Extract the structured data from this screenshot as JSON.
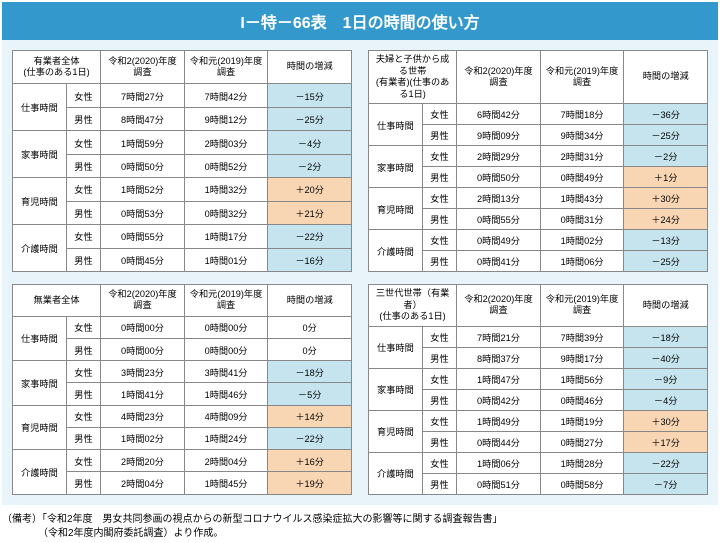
{
  "title": "I－特－66表　1日の時間の使い方",
  "headers": {
    "col_2020": "令和2(2020)年度\n調査",
    "col_2019": "令和元(2019)年度\n調査",
    "col_diff": "時間の増減",
    "female": "女性",
    "male": "男性"
  },
  "categories": [
    "仕事時間",
    "家事時間",
    "育児時間",
    "介護時間"
  ],
  "colors": {
    "neg": "#c6e4ee",
    "pos": "#f8d6b4",
    "zero": "#ffffff"
  },
  "tables": [
    {
      "label": "有業者全体\n(仕事のある1日)",
      "rows": [
        {
          "cat": "仕事時間",
          "g": "女性",
          "v2020": "7時間27分",
          "v2019": "7時間42分",
          "diff": "－15分",
          "d": -15
        },
        {
          "cat": "仕事時間",
          "g": "男性",
          "v2020": "8時間47分",
          "v2019": "9時間12分",
          "diff": "－25分",
          "d": -25
        },
        {
          "cat": "家事時間",
          "g": "女性",
          "v2020": "1時間59分",
          "v2019": "2時間03分",
          "diff": "－4分",
          "d": -4
        },
        {
          "cat": "家事時間",
          "g": "男性",
          "v2020": "0時間50分",
          "v2019": "0時間52分",
          "diff": "－2分",
          "d": -2
        },
        {
          "cat": "育児時間",
          "g": "女性",
          "v2020": "1時間52分",
          "v2019": "1時間32分",
          "diff": "＋20分",
          "d": 20
        },
        {
          "cat": "育児時間",
          "g": "男性",
          "v2020": "0時間53分",
          "v2019": "0時間32分",
          "diff": "＋21分",
          "d": 21
        },
        {
          "cat": "介護時間",
          "g": "女性",
          "v2020": "0時間55分",
          "v2019": "1時間17分",
          "diff": "－22分",
          "d": -22
        },
        {
          "cat": "介護時間",
          "g": "男性",
          "v2020": "0時間45分",
          "v2019": "1時間01分",
          "diff": "－16分",
          "d": -16
        }
      ]
    },
    {
      "label": "夫婦と子供から成る世帯\n(有業者)(仕事のある1日)",
      "rows": [
        {
          "cat": "仕事時間",
          "g": "女性",
          "v2020": "6時間42分",
          "v2019": "7時間18分",
          "diff": "－36分",
          "d": -36
        },
        {
          "cat": "仕事時間",
          "g": "男性",
          "v2020": "9時間09分",
          "v2019": "9時間34分",
          "diff": "－25分",
          "d": -25
        },
        {
          "cat": "家事時間",
          "g": "女性",
          "v2020": "2時間29分",
          "v2019": "2時間31分",
          "diff": "－2分",
          "d": -2
        },
        {
          "cat": "家事時間",
          "g": "男性",
          "v2020": "0時間50分",
          "v2019": "0時間49分",
          "diff": "＋1分",
          "d": 1
        },
        {
          "cat": "育児時間",
          "g": "女性",
          "v2020": "2時間13分",
          "v2019": "1時間43分",
          "diff": "＋30分",
          "d": 30
        },
        {
          "cat": "育児時間",
          "g": "男性",
          "v2020": "0時間55分",
          "v2019": "0時間31分",
          "diff": "＋24分",
          "d": 24
        },
        {
          "cat": "介護時間",
          "g": "女性",
          "v2020": "0時間49分",
          "v2019": "1時間02分",
          "diff": "－13分",
          "d": -13
        },
        {
          "cat": "介護時間",
          "g": "男性",
          "v2020": "0時間41分",
          "v2019": "1時間06分",
          "diff": "－25分",
          "d": -25
        }
      ]
    },
    {
      "label": "無業者全体",
      "rows": [
        {
          "cat": "仕事時間",
          "g": "女性",
          "v2020": "0時間00分",
          "v2019": "0時間00分",
          "diff": "0分",
          "d": 0
        },
        {
          "cat": "仕事時間",
          "g": "男性",
          "v2020": "0時間00分",
          "v2019": "0時間00分",
          "diff": "0分",
          "d": 0
        },
        {
          "cat": "家事時間",
          "g": "女性",
          "v2020": "3時間23分",
          "v2019": "3時間41分",
          "diff": "－18分",
          "d": -18
        },
        {
          "cat": "家事時間",
          "g": "男性",
          "v2020": "1時間41分",
          "v2019": "1時間46分",
          "diff": "－5分",
          "d": -5
        },
        {
          "cat": "育児時間",
          "g": "女性",
          "v2020": "4時間23分",
          "v2019": "4時間09分",
          "diff": "＋14分",
          "d": 14
        },
        {
          "cat": "育児時間",
          "g": "男性",
          "v2020": "1時間02分",
          "v2019": "1時間24分",
          "diff": "－22分",
          "d": -22
        },
        {
          "cat": "介護時間",
          "g": "女性",
          "v2020": "2時間20分",
          "v2019": "2時間04分",
          "diff": "＋16分",
          "d": 16
        },
        {
          "cat": "介護時間",
          "g": "男性",
          "v2020": "2時間04分",
          "v2019": "1時間45分",
          "diff": "＋19分",
          "d": 19
        }
      ]
    },
    {
      "label": "三世代世帯（有業者）\n(仕事のある1日)",
      "rows": [
        {
          "cat": "仕事時間",
          "g": "女性",
          "v2020": "7時間21分",
          "v2019": "7時間39分",
          "diff": "－18分",
          "d": -18
        },
        {
          "cat": "仕事時間",
          "g": "男性",
          "v2020": "8時間37分",
          "v2019": "9時間17分",
          "diff": "－40分",
          "d": -40
        },
        {
          "cat": "家事時間",
          "g": "女性",
          "v2020": "1時間47分",
          "v2019": "1時間56分",
          "diff": "－9分",
          "d": -9
        },
        {
          "cat": "家事時間",
          "g": "男性",
          "v2020": "0時間42分",
          "v2019": "0時間46分",
          "diff": "－4分",
          "d": -4
        },
        {
          "cat": "育児時間",
          "g": "女性",
          "v2020": "1時間49分",
          "v2019": "1時間19分",
          "diff": "＋30分",
          "d": 30
        },
        {
          "cat": "育児時間",
          "g": "男性",
          "v2020": "0時間44分",
          "v2019": "0時間27分",
          "diff": "＋17分",
          "d": 17
        },
        {
          "cat": "介護時間",
          "g": "女性",
          "v2020": "1時間06分",
          "v2019": "1時間28分",
          "diff": "－22分",
          "d": -22
        },
        {
          "cat": "介護時間",
          "g": "男性",
          "v2020": "0時間51分",
          "v2019": "0時間58分",
          "diff": "－7分",
          "d": -7
        }
      ]
    }
  ],
  "note_label": "（備考）",
  "note_line1": "「令和2年度　男女共同参画の視点からの新型コロナウイルス感染症拡大の影響等に関する調査報告書」",
  "note_line2": "（令和2年度内閣府委託調査）より作成。"
}
